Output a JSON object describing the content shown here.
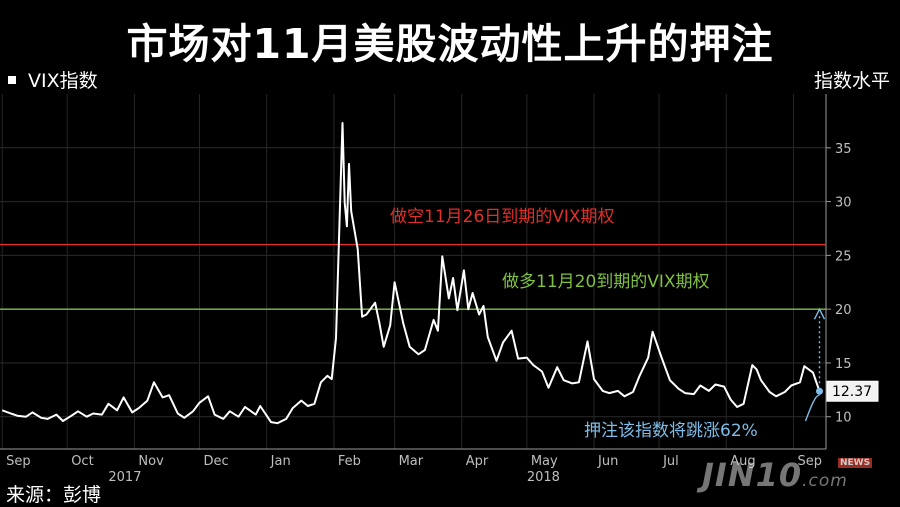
{
  "title": "市场对11月美股波动性上升的押注",
  "legend_label": "VIX指数",
  "y_axis_title": "指数水平",
  "source": "来源：彭博",
  "watermark": "JIN10",
  "watermark_suffix": ".com",
  "watermark_badge": "NEWS",
  "chart_data": {
    "type": "line",
    "series": [
      {
        "name": "VIX指数",
        "color": "#ffffff",
        "values": [
          [
            "2017-09-01",
            10.6
          ],
          [
            "2017-09-05",
            10.3
          ],
          [
            "2017-09-08",
            10.1
          ],
          [
            "2017-09-12",
            10.0
          ],
          [
            "2017-09-15",
            10.4
          ],
          [
            "2017-09-19",
            9.9
          ],
          [
            "2017-09-22",
            9.8
          ],
          [
            "2017-09-26",
            10.2
          ],
          [
            "2017-09-29",
            9.6
          ],
          [
            "2017-10-03",
            10.1
          ],
          [
            "2017-10-06",
            10.5
          ],
          [
            "2017-10-10",
            10.0
          ],
          [
            "2017-10-13",
            10.3
          ],
          [
            "2017-10-17",
            10.2
          ],
          [
            "2017-10-20",
            11.2
          ],
          [
            "2017-10-24",
            10.6
          ],
          [
            "2017-10-27",
            11.8
          ],
          [
            "2017-10-31",
            10.4
          ],
          [
            "2017-11-03",
            10.8
          ],
          [
            "2017-11-07",
            11.5
          ],
          [
            "2017-11-10",
            13.2
          ],
          [
            "2017-11-14",
            11.8
          ],
          [
            "2017-11-17",
            12.0
          ],
          [
            "2017-11-21",
            10.3
          ],
          [
            "2017-11-24",
            9.9
          ],
          [
            "2017-11-28",
            10.5
          ],
          [
            "2017-12-01",
            11.3
          ],
          [
            "2017-12-05",
            11.9
          ],
          [
            "2017-12-08",
            10.2
          ],
          [
            "2017-12-12",
            9.8
          ],
          [
            "2017-12-15",
            10.5
          ],
          [
            "2017-12-19",
            10.0
          ],
          [
            "2017-12-22",
            10.9
          ],
          [
            "2017-12-27",
            10.2
          ],
          [
            "2017-12-29",
            11.0
          ],
          [
            "2018-01-03",
            9.5
          ],
          [
            "2018-01-06",
            9.4
          ],
          [
            "2018-01-10",
            9.8
          ],
          [
            "2018-01-13",
            10.8
          ],
          [
            "2018-01-17",
            11.5
          ],
          [
            "2018-01-20",
            11.0
          ],
          [
            "2018-01-23",
            11.2
          ],
          [
            "2018-01-26",
            13.2
          ],
          [
            "2018-01-29",
            13.8
          ],
          [
            "2018-01-31",
            13.5
          ],
          [
            "2018-02-02",
            17.3
          ],
          [
            "2018-02-05",
            37.3
          ],
          [
            "2018-02-06",
            29.9
          ],
          [
            "2018-02-07",
            27.7
          ],
          [
            "2018-02-08",
            33.5
          ],
          [
            "2018-02-09",
            29.1
          ],
          [
            "2018-02-12",
            25.6
          ],
          [
            "2018-02-14",
            19.3
          ],
          [
            "2018-02-16",
            19.5
          ],
          [
            "2018-02-20",
            20.6
          ],
          [
            "2018-02-22",
            18.7
          ],
          [
            "2018-02-24",
            16.5
          ],
          [
            "2018-02-27",
            18.5
          ],
          [
            "2018-03-01",
            22.5
          ],
          [
            "2018-03-05",
            18.7
          ],
          [
            "2018-03-08",
            16.5
          ],
          [
            "2018-03-12",
            15.8
          ],
          [
            "2018-03-15",
            16.2
          ],
          [
            "2018-03-19",
            19.0
          ],
          [
            "2018-03-21",
            18.0
          ],
          [
            "2018-03-23",
            24.9
          ],
          [
            "2018-03-26",
            21.0
          ],
          [
            "2018-03-28",
            22.9
          ],
          [
            "2018-03-30",
            19.9
          ],
          [
            "2018-04-02",
            23.6
          ],
          [
            "2018-04-04",
            20.0
          ],
          [
            "2018-04-06",
            21.5
          ],
          [
            "2018-04-09",
            19.5
          ],
          [
            "2018-04-11",
            20.3
          ],
          [
            "2018-04-13",
            17.4
          ],
          [
            "2018-04-17",
            15.2
          ],
          [
            "2018-04-20",
            16.9
          ],
          [
            "2018-04-24",
            18.0
          ],
          [
            "2018-04-27",
            15.4
          ],
          [
            "2018-05-01",
            15.5
          ],
          [
            "2018-05-04",
            14.8
          ],
          [
            "2018-05-08",
            14.2
          ],
          [
            "2018-05-11",
            12.7
          ],
          [
            "2018-05-15",
            14.6
          ],
          [
            "2018-05-18",
            13.4
          ],
          [
            "2018-05-22",
            13.1
          ],
          [
            "2018-05-25",
            13.2
          ],
          [
            "2018-05-29",
            17.0
          ],
          [
            "2018-06-01",
            13.5
          ],
          [
            "2018-06-05",
            12.4
          ],
          [
            "2018-06-08",
            12.2
          ],
          [
            "2018-06-12",
            12.4
          ],
          [
            "2018-06-15",
            11.9
          ],
          [
            "2018-06-19",
            12.3
          ],
          [
            "2018-06-22",
            13.8
          ],
          [
            "2018-06-26",
            15.5
          ],
          [
            "2018-06-28",
            17.9
          ],
          [
            "2018-07-02",
            15.6
          ],
          [
            "2018-07-06",
            13.4
          ],
          [
            "2018-07-10",
            12.6
          ],
          [
            "2018-07-13",
            12.2
          ],
          [
            "2018-07-17",
            12.1
          ],
          [
            "2018-07-20",
            12.9
          ],
          [
            "2018-07-24",
            12.4
          ],
          [
            "2018-07-27",
            13.0
          ],
          [
            "2018-07-31",
            12.8
          ],
          [
            "2018-08-03",
            11.6
          ],
          [
            "2018-08-06",
            10.9
          ],
          [
            "2018-08-09",
            11.2
          ],
          [
            "2018-08-13",
            14.8
          ],
          [
            "2018-08-15",
            14.4
          ],
          [
            "2018-08-17",
            13.4
          ],
          [
            "2018-08-21",
            12.3
          ],
          [
            "2018-08-24",
            11.9
          ],
          [
            "2018-08-28",
            12.3
          ],
          [
            "2018-08-31",
            12.9
          ],
          [
            "2018-09-04",
            13.2
          ],
          [
            "2018-09-06",
            14.7
          ],
          [
            "2018-09-10",
            14.1
          ],
          [
            "2018-09-13",
            12.37
          ]
        ]
      }
    ],
    "reference_lines": [
      {
        "label": "做空11月26日到期的VIX期权",
        "value": 26,
        "color": "#e0302a"
      },
      {
        "label": "做多11月20到期的VIX期权",
        "value": 20,
        "color": "#7fc241"
      }
    ],
    "last_value_label": "12.37",
    "projection": {
      "from": 12.37,
      "to": 20,
      "label": "押注该指数将跳涨62%",
      "color": "#7fbde8"
    },
    "y_ticks": [
      10,
      15,
      20,
      25,
      30,
      35
    ],
    "ylim": [
      7,
      40
    ],
    "x_range": [
      "2017-08-31",
      "2018-09-16"
    ],
    "x_ticks": [
      {
        "label": "Sep",
        "date": "2017-09-01"
      },
      {
        "label": "Oct",
        "date": "2017-10-01"
      },
      {
        "label": "Nov",
        "date": "2017-11-01"
      },
      {
        "label": "Dec",
        "date": "2017-12-01"
      },
      {
        "label": "Jan",
        "date": "2018-01-01"
      },
      {
        "label": "Feb",
        "date": "2018-02-01"
      },
      {
        "label": "Mar",
        "date": "2018-03-01"
      },
      {
        "label": "Apr",
        "date": "2018-04-01"
      },
      {
        "label": "May",
        "date": "2018-05-01"
      },
      {
        "label": "Jun",
        "date": "2018-06-01"
      },
      {
        "label": "Jul",
        "date": "2018-07-01"
      },
      {
        "label": "Aug",
        "date": "2018-08-01"
      },
      {
        "label": "Sep",
        "date": "2018-09-01"
      }
    ],
    "year_labels": [
      {
        "label": "2017",
        "date": "2017-10-20"
      },
      {
        "label": "2018",
        "date": "2018-05-01"
      }
    ],
    "grid": true
  }
}
